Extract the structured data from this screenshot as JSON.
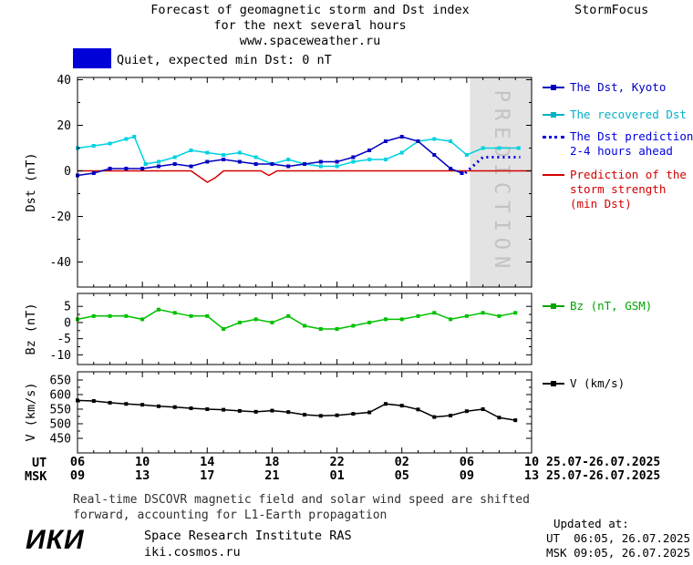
{
  "header": {
    "title_line1": "Forecast of geomagnetic storm and Dst index",
    "title_line2": "for the next several hours",
    "site": "www.spaceweather.ru",
    "brand": "StormFocus"
  },
  "status_legend": {
    "swatch_color": "#0000d8",
    "label": "Quiet, expected min Dst: 0 nT"
  },
  "legend": {
    "dst_kyoto": {
      "label": "The Dst, Kyoto",
      "color": "#0000c0"
    },
    "recovered": {
      "label": "The recovered Dst",
      "color": "#00b2c8"
    },
    "prediction": {
      "line1": "The Dst prediction",
      "line2": "2-4 hours ahead",
      "color": "#0000e0"
    },
    "storm": {
      "line1": "Prediction of the",
      "line2": "storm strength",
      "line3": "(min Dst)",
      "color": "#d40000"
    },
    "bz": {
      "label": "Bz (nT, GSM)",
      "color": "#00a400"
    },
    "v": {
      "label": "V (km/s)",
      "color": "#000000"
    }
  },
  "axis": {
    "ut_label": "UT",
    "msk_label": "MSK",
    "ut_ticks": [
      "06",
      "10",
      "14",
      "18",
      "22",
      "02",
      "06",
      "10"
    ],
    "msk_ticks": [
      "09",
      "13",
      "17",
      "21",
      "01",
      "05",
      "09",
      "13"
    ],
    "ut_date": "25.07-26.07.2025",
    "msk_date": "25.07-26.07.2025"
  },
  "footnote": {
    "line1": "Real-time DSCOVR magnetic field and solar wind speed are shifted",
    "line2": "forward, accounting for L1-Earth propagation"
  },
  "footer": {
    "logo": "ИКИ",
    "institute": "Space Research Institute RAS",
    "site": "iki.cosmos.ru",
    "updated_label": "Updated at:",
    "updated_ut": "UT  06:05, 26.07.2025",
    "updated_msk": "MSK 09:05, 26.07.2025"
  },
  "chart_data": [
    {
      "type": "line",
      "id": "dst",
      "ylabel": "Dst (nT)",
      "xlim": [
        6,
        34
      ],
      "ylim": [
        -51,
        41
      ],
      "yticks": [
        40,
        20,
        0,
        -20,
        -40
      ],
      "xticks": [
        6,
        10,
        14,
        18,
        22,
        26,
        30,
        34
      ],
      "grid": false,
      "prediction_band": {
        "x0": 30.2,
        "x1": 34,
        "color": "#e3e3e3",
        "label": "PREDICTION",
        "label_color": "#c2c2c2"
      },
      "series": [
        {
          "name": "Prediction of the storm strength (min Dst)",
          "color": "#d40000",
          "width": 1.5,
          "points": [
            [
              6,
              0
            ],
            [
              13,
              0
            ],
            [
              13.6,
              -3
            ],
            [
              14,
              -5
            ],
            [
              14.5,
              -3
            ],
            [
              15,
              0
            ],
            [
              17.3,
              0
            ],
            [
              17.8,
              -2
            ],
            [
              18.3,
              0
            ],
            [
              34,
              0
            ]
          ]
        },
        {
          "name": "The recovered Dst",
          "color": "#00d2e0",
          "marker": true,
          "width": 1.5,
          "points": [
            [
              6,
              10
            ],
            [
              7,
              11
            ],
            [
              8,
              12
            ],
            [
              9,
              14
            ],
            [
              9.5,
              15
            ],
            [
              10.2,
              3
            ],
            [
              11,
              4
            ],
            [
              12,
              6
            ],
            [
              13,
              9
            ],
            [
              14,
              8
            ],
            [
              15,
              7
            ],
            [
              16,
              8
            ],
            [
              17,
              6
            ],
            [
              18,
              3
            ],
            [
              19,
              5
            ],
            [
              20,
              3
            ],
            [
              21,
              2
            ],
            [
              22,
              2
            ],
            [
              23,
              4
            ],
            [
              24,
              5
            ],
            [
              25,
              5
            ],
            [
              26,
              8
            ],
            [
              27,
              13
            ],
            [
              28,
              14
            ],
            [
              29,
              13
            ],
            [
              30,
              7
            ],
            [
              31,
              10
            ],
            [
              32,
              10
            ],
            [
              33.2,
              10
            ]
          ]
        },
        {
          "name": "The Dst, Kyoto",
          "color": "#0000c0",
          "marker": true,
          "width": 1.5,
          "points": [
            [
              6,
              -2
            ],
            [
              7,
              -1
            ],
            [
              8,
              1
            ],
            [
              9,
              1
            ],
            [
              10,
              1
            ],
            [
              11,
              2
            ],
            [
              12,
              3
            ],
            [
              13,
              2
            ],
            [
              14,
              4
            ],
            [
              15,
              5
            ],
            [
              16,
              4
            ],
            [
              17,
              3
            ],
            [
              18,
              3
            ],
            [
              19,
              2
            ],
            [
              20,
              3
            ],
            [
              21,
              4
            ],
            [
              22,
              4
            ],
            [
              23,
              6
            ],
            [
              24,
              9
            ],
            [
              25,
              13
            ],
            [
              26,
              15
            ],
            [
              27,
              13
            ],
            [
              28,
              7
            ],
            [
              29,
              1
            ],
            [
              29.7,
              -1
            ]
          ]
        },
        {
          "name": "The Dst prediction 2-4 hours ahead",
          "color": "#0000e0",
          "width": 3,
          "dash": "2,4",
          "points": [
            [
              29.9,
              -1
            ],
            [
              31,
              6
            ],
            [
              33.3,
              6
            ]
          ]
        }
      ]
    },
    {
      "type": "line",
      "id": "bz",
      "ylabel": "Bz (nT)",
      "xlim": [
        6,
        34
      ],
      "ylim": [
        -13,
        9
      ],
      "yticks": [
        5,
        0,
        -5,
        -10
      ],
      "xticks": [
        6,
        10,
        14,
        18,
        22,
        26,
        30,
        34
      ],
      "grid": false,
      "series": [
        {
          "name": "Bz (nT, GSM)",
          "color": "#00c000",
          "marker": true,
          "width": 1.5,
          "points": [
            [
              6,
              1
            ],
            [
              7,
              2
            ],
            [
              8,
              2
            ],
            [
              9,
              2
            ],
            [
              10,
              1
            ],
            [
              11,
              4
            ],
            [
              12,
              3
            ],
            [
              13,
              2
            ],
            [
              14,
              2
            ],
            [
              15,
              -2
            ],
            [
              16,
              0
            ],
            [
              17,
              1
            ],
            [
              18,
              0
            ],
            [
              19,
              2
            ],
            [
              20,
              -1
            ],
            [
              21,
              -2
            ],
            [
              22,
              -2
            ],
            [
              23,
              -1
            ],
            [
              24,
              0
            ],
            [
              25,
              1
            ],
            [
              26,
              1
            ],
            [
              27,
              2
            ],
            [
              28,
              3
            ],
            [
              29,
              1
            ],
            [
              30,
              2
            ],
            [
              31,
              3
            ],
            [
              32,
              2
            ],
            [
              33,
              3
            ]
          ]
        }
      ]
    },
    {
      "type": "line",
      "id": "v",
      "ylabel": "V (km/s)",
      "xlim": [
        6,
        34
      ],
      "ylim": [
        400,
        678
      ],
      "yticks": [
        650,
        600,
        550,
        500,
        450
      ],
      "xticks": [
        6,
        10,
        14,
        18,
        22,
        26,
        30,
        34
      ],
      "grid": false,
      "series": [
        {
          "name": "V (km/s)",
          "color": "#000000",
          "marker": true,
          "width": 1.5,
          "points": [
            [
              6,
              580
            ],
            [
              7,
              578
            ],
            [
              8,
              572
            ],
            [
              9,
              568
            ],
            [
              10,
              565
            ],
            [
              11,
              560
            ],
            [
              12,
              557
            ],
            [
              13,
              553
            ],
            [
              14,
              550
            ],
            [
              15,
              548
            ],
            [
              16,
              544
            ],
            [
              17,
              541
            ],
            [
              18,
              545
            ],
            [
              19,
              540
            ],
            [
              20,
              531
            ],
            [
              21,
              527
            ],
            [
              22,
              529
            ],
            [
              23,
              534
            ],
            [
              24,
              539
            ],
            [
              25,
              568
            ],
            [
              26,
              562
            ],
            [
              27,
              549
            ],
            [
              28,
              523
            ],
            [
              29,
              528
            ],
            [
              30,
              543
            ],
            [
              31,
              550
            ],
            [
              32,
              521
            ],
            [
              33,
              512
            ]
          ]
        }
      ]
    }
  ]
}
